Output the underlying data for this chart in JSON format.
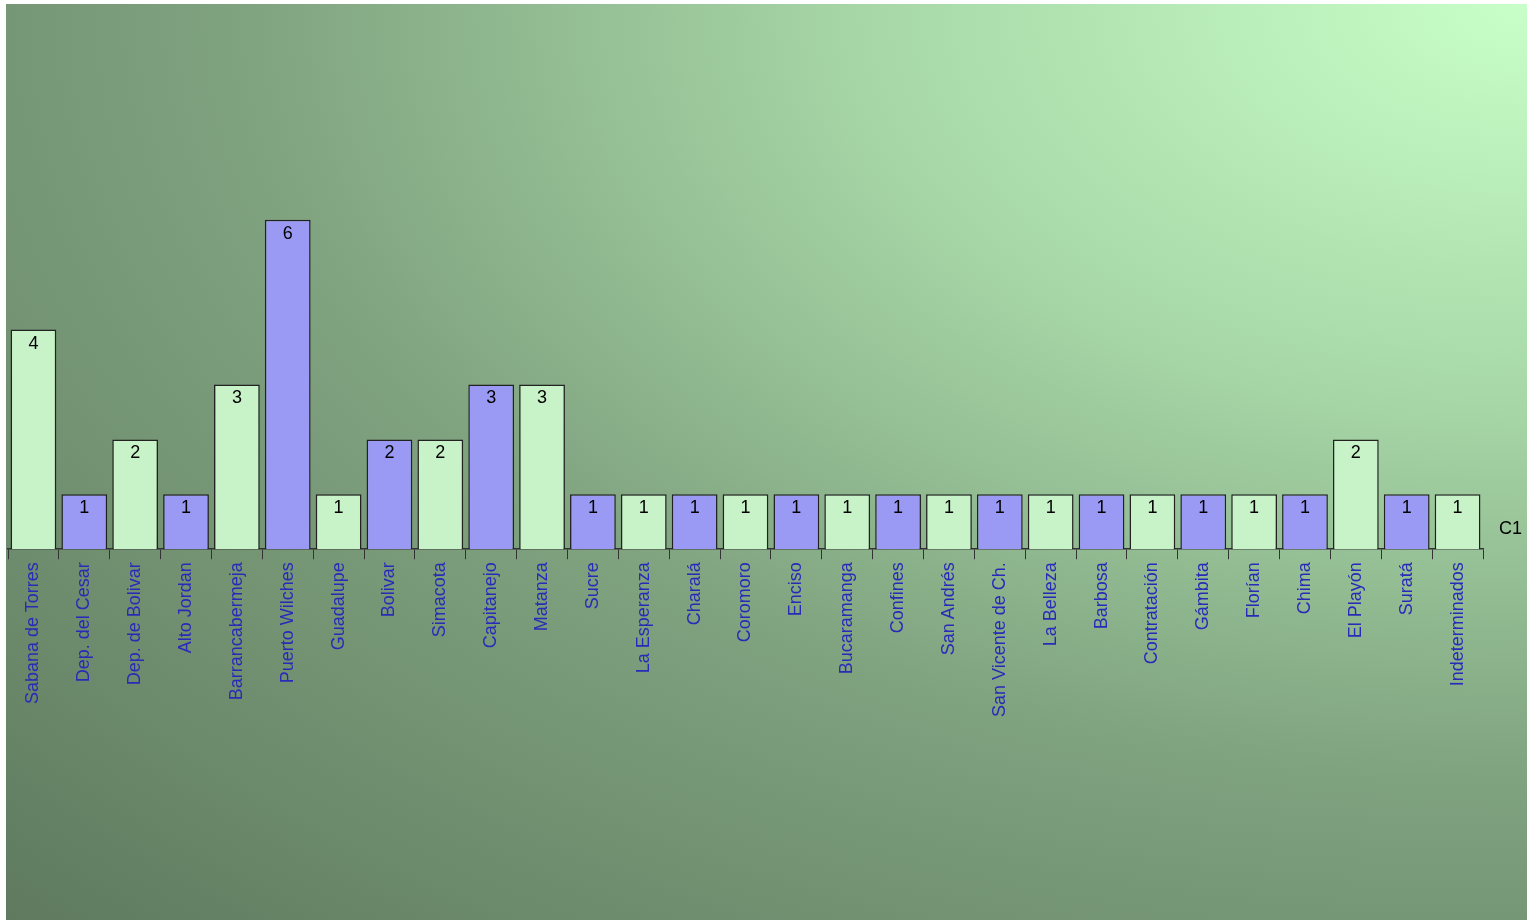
{
  "chart_data": {
    "type": "bar",
    "categories": [
      "Sabana de Torres",
      "Dep. del Cesar",
      "Dep. de Bolivar",
      "Alto Jordan",
      "Barrancabermeja",
      "Puerto Wilches",
      "Guadalupe",
      "Bolivar",
      "Simacota",
      "Capitanejo",
      "Matanza",
      "Sucre",
      "La Esperanza",
      "Charalá",
      "Coromoro",
      "Enciso",
      "Bucaramanga",
      "Confines",
      "San Andrés",
      "San Vicente de Ch.",
      "La Belleza",
      "Barbosa",
      "Contratación",
      "Gámbita",
      "Florían",
      "Chima",
      "El Playón",
      "Suratá",
      "Indeterminados"
    ],
    "values": [
      4,
      1,
      2,
      1,
      3,
      6,
      1,
      2,
      2,
      3,
      3,
      1,
      1,
      1,
      1,
      1,
      1,
      1,
      1,
      1,
      1,
      1,
      1,
      1,
      1,
      1,
      2,
      1,
      1
    ],
    "colors": [
      "#c8f2c8",
      "#9a9af5",
      "#c8f2c8",
      "#9a9af5",
      "#c8f2c8",
      "#9a9af5",
      "#c8f2c8",
      "#9a9af5",
      "#c8f2c8",
      "#9a9af5",
      "#c8f2c8",
      "#9a9af5",
      "#c8f2c8",
      "#9a9af5",
      "#c8f2c8",
      "#9a9af5",
      "#c8f2c8",
      "#9a9af5",
      "#c8f2c8",
      "#9a9af5",
      "#c8f2c8",
      "#9a9af5",
      "#c8f2c8",
      "#9a9af5",
      "#c8f2c8",
      "#9a9af5",
      "#c8f2c8",
      "#9a9af5",
      "#c8f2c8"
    ],
    "data_labels": true,
    "annotations": [
      "C1"
    ],
    "grid": false,
    "legend": false
  }
}
